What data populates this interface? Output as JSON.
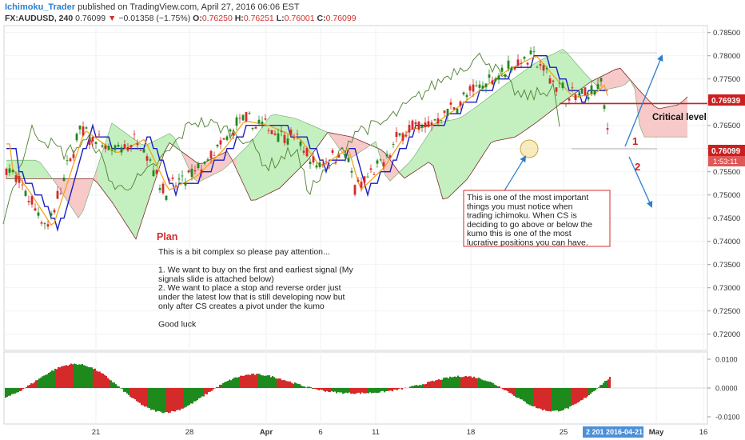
{
  "header": {
    "author": "Ichimoku_Trader",
    "published_text": "published on TradingView.com, April 27, 2016 06:06 EST",
    "symbol": "FX:AUDUSD, 240",
    "last": "0.76099",
    "change_arrow": "▼",
    "change": "−0.01358 (−1.75%)",
    "o_label": "O:",
    "o": "0.76250",
    "h_label": "H:",
    "h": "0.76251",
    "l_label": "L:",
    "l": "0.76001",
    "c_label": "C:",
    "c": "0.76099"
  },
  "annotations": {
    "plan_title": "Plan",
    "plan_lines": [
      "This is a bit complex so please pay attention...",
      "",
      "1. We want to buy on the first and earliest signal (My",
      "signals slide is attached below)",
      "2. We want to place a stop and reverse order just",
      "under the latest low that is still developing now but",
      "only after CS creates a pivot under the kumo",
      "",
      "Good luck"
    ],
    "note_lines": [
      "This is one of the most important",
      "things you must notice when",
      "trading ichimoku. When CS is",
      "deciding to go above or below the",
      "kumo this is one of the most",
      "lucrative positions you can have."
    ],
    "critical_label": "Critical level",
    "label_1": "1",
    "label_2": "2"
  },
  "price_badges": {
    "upper": "0.76939",
    "current": "0.76099",
    "timer": "1:53:11"
  },
  "chart_data": {
    "type": "candlestick",
    "price_axis": {
      "ylim": [
        0.7165,
        0.7865
      ],
      "ticks": [
        0.785,
        0.78,
        0.775,
        0.77,
        0.765,
        0.76,
        0.755,
        0.75,
        0.745,
        0.74,
        0.735,
        0.73,
        0.725,
        0.72
      ],
      "tick_labels": [
        "0.78500",
        "0.78000",
        "0.77500",
        "0.77000",
        "0.76500",
        "0.76000",
        "0.75500",
        "0.75000",
        "0.74500",
        "0.74000",
        "0.73500",
        "0.73000",
        "0.72500",
        "0.72000"
      ]
    },
    "time_axis": {
      "labels": [
        "21",
        "28",
        "Apr",
        "6",
        "11",
        "18",
        "25",
        "May",
        "16"
      ],
      "cursor_label": "2 201  2016-04-21"
    },
    "critical_level": 0.7697,
    "oscillator": {
      "ticks": [
        0.01,
        0.0,
        -0.01
      ],
      "tick_labels": [
        "0.0100",
        "0.0000",
        "-0.0100"
      ],
      "ylim": [
        -0.0125,
        0.0125
      ]
    },
    "colors": {
      "bull": "#1e8a1e",
      "bear": "#d52a2a",
      "tenkan": "#f5a21b",
      "kijun": "#1b1fbf",
      "chikou": "#4f7f2f",
      "cloud_bull": "#c4f0c0",
      "cloud_bear": "#f7c9c9",
      "critical": "#cc1f1f",
      "annotation_arrow": "#2a7fcf"
    }
  }
}
